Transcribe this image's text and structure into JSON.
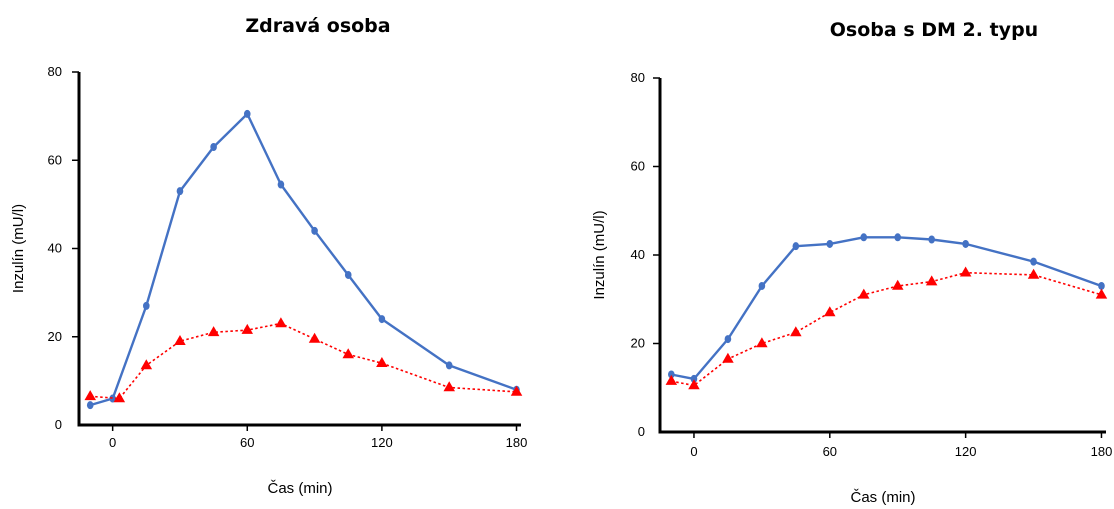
{
  "colors": {
    "blue": "#4472C4",
    "red": "#FF0000",
    "axis": "#000000"
  },
  "chart_data": [
    {
      "type": "line",
      "title": "Zdravá osoba",
      "xlabel": "Čas (min)",
      "ylabel": "Inzulín (mU/l)",
      "xlim": [
        -15,
        182
      ],
      "ylim": [
        0,
        80
      ],
      "xticks": [
        0,
        60,
        120,
        180
      ],
      "yticks": [
        0,
        20,
        40,
        60,
        80
      ],
      "series": [
        {
          "color": "#4472C4",
          "marker": "circle",
          "line": "solid",
          "x": [
            -10,
            0,
            15,
            30,
            45,
            60,
            75,
            90,
            105,
            120,
            150,
            180
          ],
          "y": [
            4.5,
            6,
            27,
            53,
            63,
            70.5,
            54.5,
            44,
            34,
            24,
            13.5,
            8
          ]
        },
        {
          "color": "#FF0000",
          "marker": "triangle",
          "line": "dotted",
          "x": [
            -10,
            3,
            15,
            30,
            45,
            60,
            75,
            90,
            105,
            120,
            150,
            180
          ],
          "y": [
            6.5,
            6,
            13.5,
            19,
            21,
            21.5,
            23,
            19.5,
            16,
            14,
            8.5,
            7.5
          ]
        }
      ]
    },
    {
      "type": "line",
      "title": "Osoba s DM 2. typu",
      "xlabel": "Čas (min)",
      "ylabel": "Inzulín (mU/l)",
      "xlim": [
        -15,
        182
      ],
      "ylim": [
        0,
        80
      ],
      "xticks": [
        0,
        60,
        120,
        180
      ],
      "yticks": [
        0,
        20,
        40,
        60,
        80
      ],
      "series": [
        {
          "color": "#4472C4",
          "marker": "circle",
          "line": "solid",
          "x": [
            -10,
            0,
            15,
            30,
            45,
            60,
            75,
            90,
            105,
            120,
            150,
            180
          ],
          "y": [
            13,
            12,
            21,
            33,
            42,
            42.5,
            44,
            44,
            43.5,
            42.5,
            38.5,
            33
          ]
        },
        {
          "color": "#FF0000",
          "marker": "triangle",
          "line": "dotted",
          "x": [
            -10,
            0,
            15,
            30,
            45,
            60,
            75,
            90,
            105,
            120,
            150,
            180
          ],
          "y": [
            11.5,
            10.5,
            16.5,
            20,
            22.5,
            27,
            31,
            33,
            34,
            36,
            35.5,
            31
          ]
        }
      ]
    }
  ]
}
